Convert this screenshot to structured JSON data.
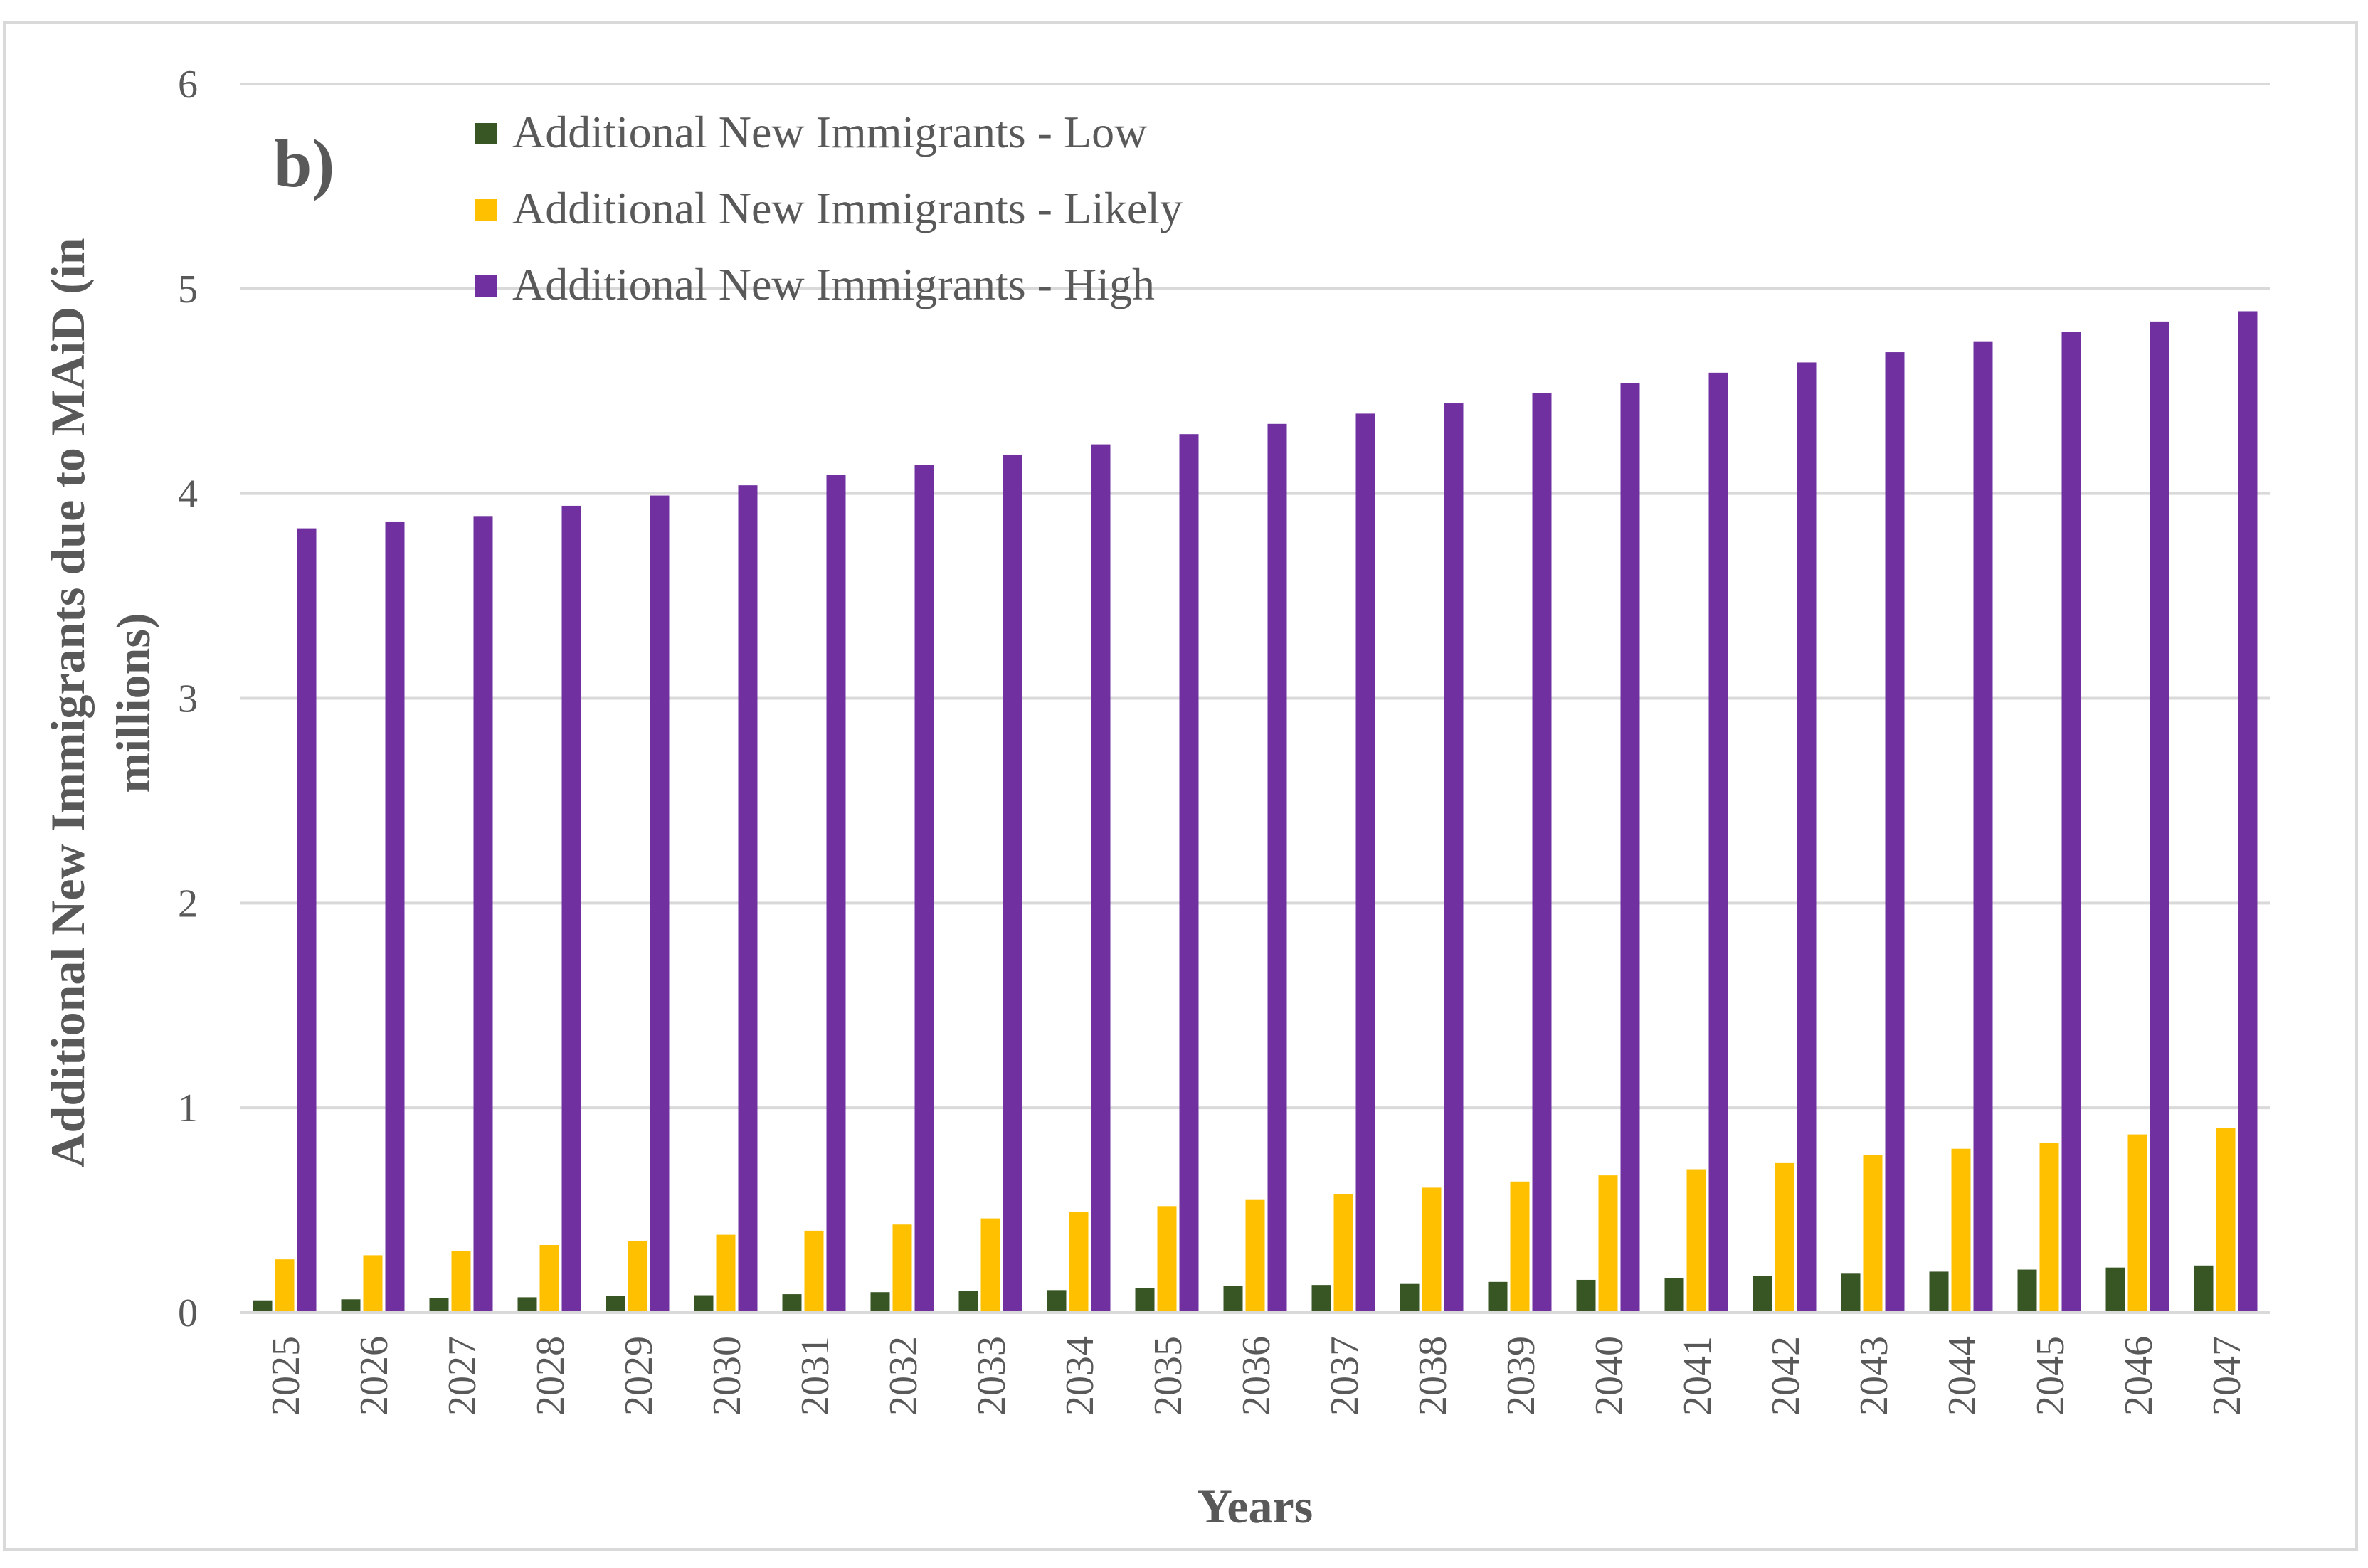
{
  "chart_data": {
    "type": "bar",
    "panel_label": "b)",
    "xlabel": "Years",
    "ylabel_line1": "Additional New Immigrants due to MAiD (in",
    "ylabel_line2": "millions)",
    "ylim": [
      0,
      6
    ],
    "yticks": [
      "0",
      "1",
      "2",
      "3",
      "4",
      "5",
      "6"
    ],
    "grid": true,
    "legend_position": "top-left",
    "categories": [
      "2025",
      "2026",
      "2027",
      "2028",
      "2029",
      "2030",
      "2031",
      "2032",
      "2033",
      "2034",
      "2035",
      "2036",
      "2037",
      "2038",
      "2039",
      "2040",
      "2041",
      "2042",
      "2043",
      "2044",
      "2045",
      "2046",
      "2047"
    ],
    "series": [
      {
        "name": "Additional New Immigrants - Low",
        "color": "#375623",
        "values": [
          0.06,
          0.065,
          0.07,
          0.075,
          0.08,
          0.085,
          0.09,
          0.1,
          0.105,
          0.11,
          0.12,
          0.13,
          0.135,
          0.14,
          0.15,
          0.16,
          0.17,
          0.18,
          0.19,
          0.2,
          0.21,
          0.22,
          0.23
        ]
      },
      {
        "name": "Additional New Immigrants - Likely",
        "color": "#ffc000",
        "values": [
          0.26,
          0.28,
          0.3,
          0.33,
          0.35,
          0.38,
          0.4,
          0.43,
          0.46,
          0.49,
          0.52,
          0.55,
          0.58,
          0.61,
          0.64,
          0.67,
          0.7,
          0.73,
          0.77,
          0.8,
          0.83,
          0.87,
          0.9
        ]
      },
      {
        "name": "Additional New Immigrants - High",
        "color": "#7030a0",
        "values": [
          3.83,
          3.86,
          3.89,
          3.94,
          3.99,
          4.04,
          4.09,
          4.14,
          4.19,
          4.24,
          4.29,
          4.34,
          4.39,
          4.44,
          4.49,
          4.54,
          4.59,
          4.64,
          4.69,
          4.74,
          4.79,
          4.84,
          4.89
        ]
      }
    ]
  }
}
